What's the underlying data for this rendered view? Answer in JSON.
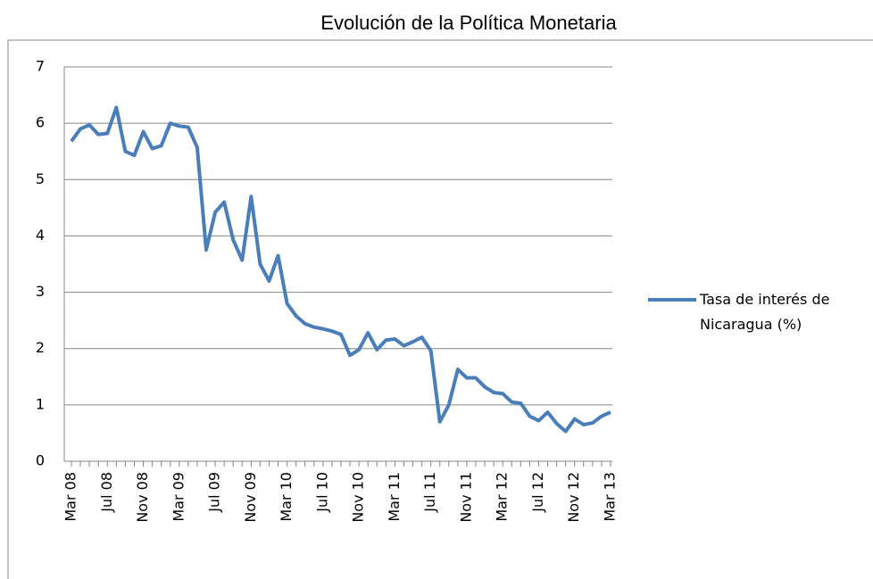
{
  "chart_data": {
    "type": "line",
    "title": "Evolución de la Política Monetaria",
    "categories": [
      "Mar 08",
      null,
      null,
      null,
      "Jul 08",
      null,
      null,
      null,
      "Nov 08",
      null,
      null,
      null,
      "Mar 09",
      null,
      null,
      null,
      "Jul 09",
      null,
      null,
      null,
      "Nov 09",
      null,
      null,
      null,
      "Mar 10",
      null,
      null,
      null,
      "Jul 10",
      null,
      null,
      null,
      "Nov 10",
      null,
      null,
      null,
      "Mar 11",
      null,
      null,
      null,
      "Jul 11",
      null,
      null,
      null,
      "Nov 11",
      null,
      null,
      null,
      "Mar 12",
      null,
      null,
      null,
      "Jul 12",
      null,
      null,
      null,
      "Nov 12",
      null,
      null,
      null,
      "Mar 13"
    ],
    "series": [
      {
        "name": "Tasa de interés de Nicaragua (%)",
        "color": "#4a7ebb",
        "values": [
          5.68,
          5.9,
          5.97,
          5.8,
          5.82,
          6.28,
          5.5,
          5.43,
          5.85,
          5.55,
          5.6,
          6.0,
          5.95,
          5.93,
          5.57,
          3.75,
          4.42,
          4.6,
          3.93,
          3.57,
          4.7,
          3.5,
          3.2,
          3.65,
          2.8,
          2.58,
          2.44,
          2.38,
          2.35,
          2.31,
          2.25,
          1.88,
          1.98,
          2.28,
          1.98,
          2.15,
          2.17,
          2.05,
          2.12,
          2.2,
          1.96,
          0.7,
          1.0,
          1.63,
          1.48,
          1.48,
          1.32,
          1.22,
          1.2,
          1.05,
          1.03,
          0.8,
          0.72,
          0.87,
          0.67,
          0.53,
          0.75,
          0.65,
          0.68,
          0.8,
          0.87
        ]
      }
    ],
    "ylim": [
      0,
      7
    ],
    "yticks": [
      0,
      1,
      2,
      3,
      4,
      5,
      6,
      7
    ],
    "grid": true,
    "legend": "right"
  }
}
